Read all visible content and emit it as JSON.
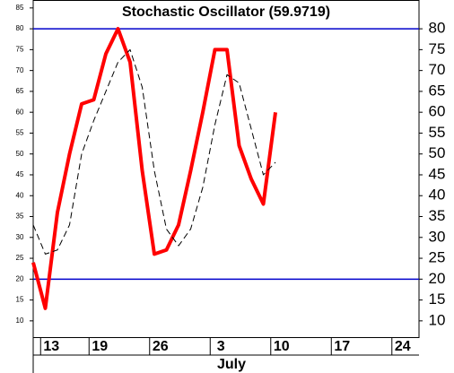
{
  "chart_data": {
    "type": "line",
    "title": "Stochastic Oscillator (59.9719)",
    "x_label": "July",
    "x": [
      0,
      1,
      2,
      3,
      4,
      5,
      6,
      7,
      8,
      9,
      10,
      11,
      12,
      13,
      14,
      15,
      16,
      17,
      18,
      19,
      20
    ],
    "xlim": [
      0,
      31.85
    ],
    "xticks": [
      {
        "value": 1.5,
        "label": "13"
      },
      {
        "value": 5.5,
        "label": "19"
      },
      {
        "value": 10.5,
        "label": "26"
      },
      {
        "value": 15.5,
        "label": "3"
      },
      {
        "value": 20.5,
        "label": "10"
      },
      {
        "value": 25.5,
        "label": "17"
      },
      {
        "value": 30.5,
        "label": "24"
      }
    ],
    "ylim": [
      6.1,
      86.9
    ],
    "yticks": [
      10,
      15,
      20,
      25,
      30,
      35,
      40,
      45,
      50,
      55,
      60,
      65,
      70,
      75,
      80,
      85
    ],
    "y2lim": [
      6.1,
      86.9
    ],
    "y2ticks": [
      10,
      15,
      20,
      25,
      30,
      35,
      40,
      45,
      50,
      55,
      60,
      65,
      70,
      75,
      80
    ],
    "reference_lines": [
      20,
      80
    ],
    "reference_color": "#0000cc",
    "series": [
      {
        "color": "#ff0000",
        "style": "solid",
        "values": [
          24,
          13,
          36,
          50,
          62,
          63,
          74,
          80,
          72,
          46,
          26,
          27,
          33,
          46,
          60,
          75,
          75,
          52,
          44,
          38,
          59.9719
        ]
      },
      {
        "color": "#000000",
        "style": "dashed",
        "values": [
          33,
          26,
          27,
          33,
          50,
          58,
          65,
          72,
          75,
          66,
          46,
          32,
          28,
          32,
          42,
          57,
          69,
          67,
          56,
          45,
          48
        ]
      }
    ]
  }
}
